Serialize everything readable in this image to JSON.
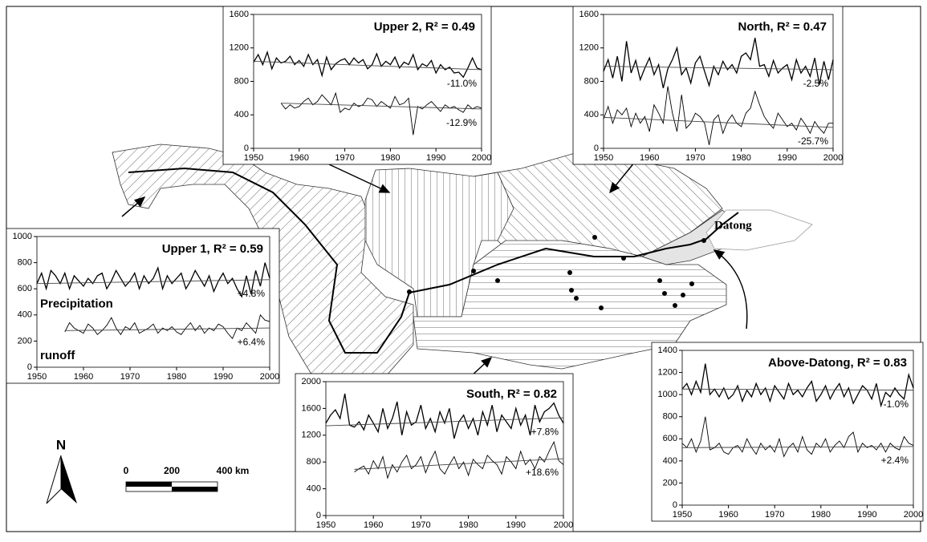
{
  "chart_data": [
    {
      "type": "line",
      "title": "Upper 2, R² = 0.49",
      "x": [
        1950,
        1951,
        1952,
        1953,
        1954,
        1955,
        1956,
        1957,
        1958,
        1959,
        1960,
        1961,
        1962,
        1963,
        1964,
        1965,
        1966,
        1967,
        1968,
        1969,
        1970,
        1971,
        1972,
        1973,
        1974,
        1975,
        1976,
        1977,
        1978,
        1979,
        1980,
        1981,
        1982,
        1983,
        1984,
        1985,
        1986,
        1987,
        1988,
        1989,
        1990,
        1991,
        1992,
        1993,
        1994,
        1995,
        1996,
        1997,
        1998,
        1999,
        2000
      ],
      "series": [
        {
          "color": "#000000",
          "values": [
            1030,
            1120,
            1000,
            1150,
            950,
            1080,
            1020,
            1040,
            1100,
            1000,
            1050,
            980,
            1120,
            1000,
            1060,
            870,
            1090,
            940,
            1010,
            1050,
            1070,
            1000,
            1080,
            1020,
            1060,
            950,
            1000,
            1130,
            980,
            1040,
            1000,
            1090,
            960,
            1030,
            1000,
            1120,
            940,
            1010,
            980,
            1050,
            900,
            1000,
            940,
            970,
            900,
            910,
            850,
            960,
            1080,
            960,
            940
          ]
        },
        {
          "color": "#000000",
          "values": [
            null,
            null,
            null,
            null,
            null,
            null,
            540,
            470,
            520,
            480,
            500,
            560,
            600,
            520,
            560,
            640,
            580,
            520,
            660,
            430,
            480,
            460,
            540,
            500,
            520,
            600,
            580,
            500,
            560,
            520,
            480,
            620,
            520,
            540,
            600,
            160,
            500,
            470,
            520,
            560,
            500,
            440,
            520,
            480,
            500,
            460,
            430,
            520,
            470,
            500,
            480
          ]
        }
      ],
      "trends": [
        {
          "x": [
            1950,
            2000
          ],
          "values": [
            1040,
            940
          ]
        },
        {
          "x": [
            1956,
            2000
          ],
          "values": [
            540,
            470
          ]
        }
      ],
      "annotations": [
        "-11.0%",
        "-12.9%"
      ],
      "xlim": [
        1950,
        2000
      ],
      "xticks": [
        1950,
        1960,
        1970,
        1980,
        1990,
        2000
      ],
      "ylim": [
        0,
        1600
      ],
      "yticks": [
        0,
        400,
        800,
        1200,
        1600
      ]
    },
    {
      "type": "line",
      "title": "North, R² = 0.47",
      "x": [
        1950,
        1951,
        1952,
        1953,
        1954,
        1955,
        1956,
        1957,
        1958,
        1959,
        1960,
        1961,
        1962,
        1963,
        1964,
        1965,
        1966,
        1967,
        1968,
        1969,
        1970,
        1971,
        1972,
        1973,
        1974,
        1975,
        1976,
        1977,
        1978,
        1979,
        1980,
        1981,
        1982,
        1983,
        1984,
        1985,
        1986,
        1987,
        1988,
        1989,
        1990,
        1991,
        1992,
        1993,
        1994,
        1995,
        1996,
        1997,
        1998,
        1999,
        2000
      ],
      "series": [
        {
          "color": "#000000",
          "values": [
            920,
            1060,
            840,
            1100,
            800,
            1280,
            900,
            1050,
            820,
            960,
            1080,
            880,
            1000,
            720,
            950,
            1060,
            1200,
            880,
            960,
            780,
            1020,
            1100,
            920,
            750,
            980,
            880,
            1040,
            940,
            1000,
            900,
            1100,
            1140,
            1060,
            1320,
            980,
            1000,
            860,
            1050,
            900,
            960,
            1000,
            820,
            1060,
            900,
            980,
            860,
            1080,
            760,
            1040,
            820,
            1060
          ]
        },
        {
          "color": "#000000",
          "values": [
            350,
            500,
            300,
            460,
            400,
            480,
            260,
            420,
            300,
            380,
            200,
            520,
            420,
            300,
            740,
            420,
            200,
            640,
            240,
            300,
            420,
            380,
            300,
            40,
            340,
            400,
            180,
            320,
            400,
            300,
            260,
            420,
            480,
            680,
            520,
            380,
            300,
            240,
            420,
            340,
            260,
            300,
            220,
            360,
            280,
            180,
            320,
            240,
            180,
            300,
            300
          ]
        }
      ],
      "trends": [
        {
          "x": [
            1950,
            2000
          ],
          "values": [
            980,
            940
          ]
        },
        {
          "x": [
            1950,
            2000
          ],
          "values": [
            370,
            250
          ]
        }
      ],
      "annotations": [
        "-2.5%",
        "-25.7%"
      ],
      "xlim": [
        1950,
        2000
      ],
      "xticks": [
        1950,
        1960,
        1970,
        1980,
        1990,
        2000
      ],
      "ylim": [
        0,
        1600
      ],
      "yticks": [
        0,
        400,
        800,
        1200,
        1600
      ]
    },
    {
      "type": "line",
      "title": "Upper 1,  R² = 0.59",
      "x": [
        1950,
        1951,
        1952,
        1953,
        1954,
        1955,
        1956,
        1957,
        1958,
        1959,
        1960,
        1961,
        1962,
        1963,
        1964,
        1965,
        1966,
        1967,
        1968,
        1969,
        1970,
        1971,
        1972,
        1973,
        1974,
        1975,
        1976,
        1977,
        1978,
        1979,
        1980,
        1981,
        1982,
        1983,
        1984,
        1985,
        1986,
        1987,
        1988,
        1989,
        1990,
        1991,
        1992,
        1993,
        1994,
        1995,
        1996,
        1997,
        1998,
        1999,
        2000
      ],
      "series": [
        {
          "name": "Precipitation",
          "color": "#000000",
          "values": [
            640,
            720,
            600,
            740,
            700,
            640,
            720,
            600,
            700,
            660,
            620,
            680,
            640,
            700,
            720,
            600,
            660,
            740,
            680,
            620,
            660,
            720,
            600,
            700,
            640,
            680,
            760,
            600,
            700,
            640,
            680,
            720,
            600,
            660,
            740,
            680,
            620,
            700,
            580,
            660,
            720,
            640,
            680,
            600,
            540,
            700,
            560,
            740,
            620,
            800,
            680
          ]
        },
        {
          "name": "runoff",
          "color": "#000000",
          "values": [
            null,
            null,
            null,
            null,
            null,
            null,
            270,
            340,
            300,
            280,
            260,
            330,
            300,
            250,
            280,
            320,
            380,
            300,
            250,
            310,
            290,
            340,
            260,
            280,
            300,
            330,
            260,
            300,
            280,
            310,
            270,
            250,
            300,
            340,
            280,
            320,
            260,
            300,
            280,
            330,
            310,
            260,
            220,
            300,
            280,
            340,
            300,
            260,
            400,
            360,
            350
          ]
        }
      ],
      "trends": [
        {
          "x": [
            1950,
            2000
          ],
          "values": [
            640,
            670
          ]
        },
        {
          "x": [
            1956,
            2000
          ],
          "values": [
            280,
            300
          ]
        }
      ],
      "annotations": [
        "+4.8%",
        "+6.4%"
      ],
      "xlim": [
        1950,
        2000
      ],
      "xticks": [
        1950,
        1960,
        1970,
        1980,
        1990,
        2000
      ],
      "ylim": [
        0,
        1000
      ],
      "yticks": [
        0,
        200,
        400,
        600,
        800,
        1000
      ]
    },
    {
      "type": "line",
      "title": "South,  R² = 0.82",
      "x": [
        1950,
        1951,
        1952,
        1953,
        1954,
        1955,
        1956,
        1957,
        1958,
        1959,
        1960,
        1961,
        1962,
        1963,
        1964,
        1965,
        1966,
        1967,
        1968,
        1969,
        1970,
        1971,
        1972,
        1973,
        1974,
        1975,
        1976,
        1977,
        1978,
        1979,
        1980,
        1981,
        1982,
        1983,
        1984,
        1985,
        1986,
        1987,
        1988,
        1989,
        1990,
        1991,
        1992,
        1993,
        1994,
        1995,
        1996,
        1997,
        1998,
        1999,
        2000
      ],
      "series": [
        {
          "color": "#000000",
          "values": [
            1380,
            1500,
            1580,
            1450,
            1820,
            1350,
            1320,
            1400,
            1280,
            1500,
            1380,
            1250,
            1600,
            1300,
            1450,
            1700,
            1200,
            1550,
            1350,
            1400,
            1650,
            1300,
            1450,
            1250,
            1550,
            1380,
            1600,
            1150,
            1400,
            1500,
            1300,
            1450,
            1200,
            1550,
            1350,
            1650,
            1250,
            1500,
            1400,
            1300,
            1600,
            1350,
            1500,
            1200,
            1650,
            1400,
            1550,
            1600,
            1680,
            1500,
            1380
          ]
        },
        {
          "color": "#000000",
          "values": [
            null,
            null,
            null,
            null,
            null,
            null,
            650,
            700,
            740,
            620,
            820,
            700,
            880,
            560,
            760,
            650,
            800,
            900,
            700,
            760,
            880,
            640,
            820,
            960,
            700,
            620,
            760,
            880,
            700,
            800,
            600,
            840,
            760,
            700,
            900,
            820,
            760,
            620,
            880,
            800,
            700,
            960,
            760,
            840,
            700,
            880,
            800,
            960,
            1100,
            820,
            760
          ]
        }
      ],
      "trends": [
        {
          "x": [
            1950,
            2000
          ],
          "values": [
            1340,
            1460
          ]
        },
        {
          "x": [
            1956,
            2000
          ],
          "values": [
            690,
            850
          ]
        }
      ],
      "annotations": [
        "+7.8%",
        "+18.6%"
      ],
      "xlim": [
        1950,
        2000
      ],
      "xticks": [
        1950,
        1960,
        1970,
        1980,
        1990,
        2000
      ],
      "ylim": [
        0,
        2000
      ],
      "yticks": [
        0,
        400,
        800,
        1200,
        1600,
        2000
      ]
    },
    {
      "type": "line",
      "title": "Above-Datong, R² = 0.83",
      "x": [
        1950,
        1951,
        1952,
        1953,
        1954,
        1955,
        1956,
        1957,
        1958,
        1959,
        1960,
        1961,
        1962,
        1963,
        1964,
        1965,
        1966,
        1967,
        1968,
        1969,
        1970,
        1971,
        1972,
        1973,
        1974,
        1975,
        1976,
        1977,
        1978,
        1979,
        1980,
        1981,
        1982,
        1983,
        1984,
        1985,
        1986,
        1987,
        1988,
        1989,
        1990,
        1991,
        1992,
        1993,
        1994,
        1995,
        1996,
        1997,
        1998,
        1999,
        2000
      ],
      "series": [
        {
          "color": "#000000",
          "values": [
            1050,
            1100,
            1000,
            1120,
            1020,
            1280,
            1000,
            1050,
            980,
            1060,
            960,
            1000,
            1080,
            940,
            1040,
            980,
            1100,
            1000,
            1060,
            940,
            1080,
            1020,
            960,
            1100,
            1000,
            1040,
            980,
            1060,
            1120,
            940,
            1000,
            1080,
            960,
            1040,
            1100,
            980,
            1060,
            920,
            1000,
            1080,
            1040,
            960,
            1100,
            900,
            1020,
            980,
            1060,
            1000,
            960,
            1180,
            1060
          ]
        },
        {
          "color": "#000000",
          "values": [
            560,
            520,
            600,
            480,
            580,
            800,
            500,
            520,
            560,
            480,
            460,
            520,
            540,
            480,
            600,
            520,
            460,
            560,
            500,
            540,
            480,
            600,
            440,
            520,
            560,
            480,
            620,
            500,
            460,
            560,
            520,
            600,
            480,
            540,
            580,
            520,
            620,
            660,
            480,
            560,
            520,
            540,
            500,
            560,
            480,
            560,
            520,
            500,
            620,
            560,
            540
          ]
        }
      ],
      "trends": [
        {
          "x": [
            1950,
            2000
          ],
          "values": [
            1050,
            1040
          ]
        },
        {
          "x": [
            1950,
            2000
          ],
          "values": [
            520,
            530
          ]
        }
      ],
      "annotations": [
        "-1.0%",
        "+2.4%"
      ],
      "xlim": [
        1950,
        2000
      ],
      "xticks": [
        1950,
        1960,
        1970,
        1980,
        1990,
        2000
      ],
      "ylim": [
        0,
        1400
      ],
      "yticks": [
        0,
        200,
        400,
        600,
        800,
        1000,
        1200,
        1400
      ]
    }
  ],
  "map": {
    "station": "Datong",
    "north": "N",
    "scale_labels": [
      "0",
      "200",
      "400 km"
    ]
  }
}
